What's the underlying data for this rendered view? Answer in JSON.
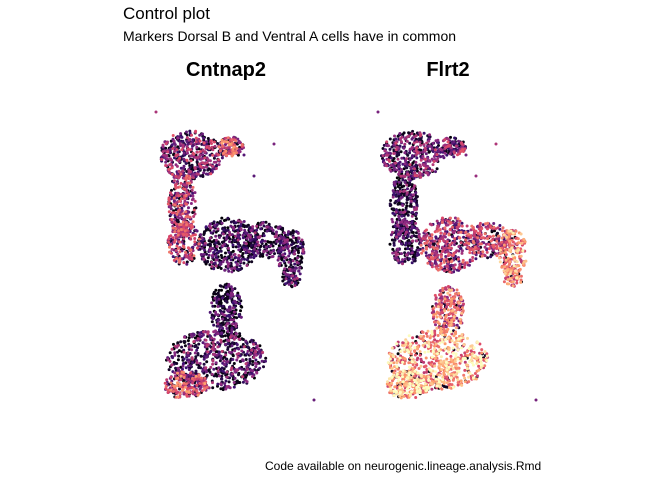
{
  "header": {
    "title": "Control plot",
    "subtitle": "Markers Dorsal B and Ventral A cells have in common"
  },
  "caption": "Code available on neurogenic.lineage.analysis.Rmd",
  "chart_data": [
    {
      "type": "scatter",
      "title": "Cntnap2",
      "palette": [
        "#000004",
        "#3b0f70",
        "#8c2981",
        "#de4968",
        "#fe9f6d",
        "#fcfdbf"
      ],
      "grid": false,
      "axes_visible": false,
      "expression_by_region": [
        {
          "region": "top-lobe",
          "mean_level": 0.35
        },
        {
          "region": "upper-right-tip",
          "mean_level": 0.55
        },
        {
          "region": "stem",
          "mean_level": 0.45
        },
        {
          "region": "middle-arm",
          "mean_level": 0.2
        },
        {
          "region": "lower-neck",
          "mean_level": 0.15
        },
        {
          "region": "bottom-blob",
          "mean_level": 0.25
        },
        {
          "region": "bottom-left-edge",
          "mean_level": 0.55
        }
      ]
    },
    {
      "type": "scatter",
      "title": "Flrt2",
      "palette": [
        "#000004",
        "#3b0f70",
        "#8c2981",
        "#de4968",
        "#fe9f6d",
        "#fcfdbf"
      ],
      "grid": false,
      "axes_visible": false,
      "expression_by_region": [
        {
          "region": "top-lobe",
          "mean_level": 0.3
        },
        {
          "region": "upper-right-tip",
          "mean_level": 0.35
        },
        {
          "region": "stem",
          "mean_level": 0.2
        },
        {
          "region": "middle-arm",
          "mean_level": 0.45
        },
        {
          "region": "right-arm-tip",
          "mean_level": 0.7
        },
        {
          "region": "lower-neck",
          "mean_level": 0.6
        },
        {
          "region": "bottom-blob",
          "mean_level": 0.78
        },
        {
          "region": "bottom-left-edge",
          "mean_level": 0.8
        }
      ]
    }
  ]
}
